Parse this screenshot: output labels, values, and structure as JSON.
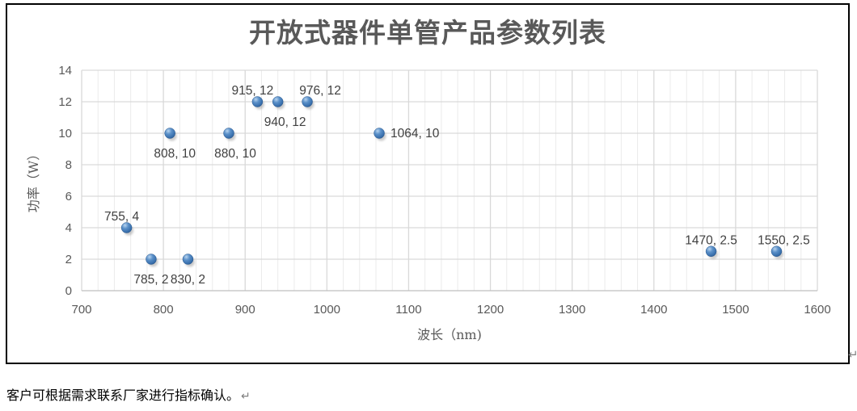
{
  "page": {
    "footer_text": "客户可根据需求联系厂家进行指标确认。",
    "return_mark": "↵"
  },
  "chart_data": {
    "type": "scatter",
    "title": "开放式器件单管产品参数列表",
    "xlabel": "波长（nm)",
    "ylabel": "功率（W）",
    "xlim": [
      700,
      1600
    ],
    "ylim": [
      0,
      14
    ],
    "x_major_step": 100,
    "x_minor_step": 20,
    "y_major_step": 2,
    "grid": true,
    "legend": "none",
    "marker_color": "#3f76b4",
    "colors": {
      "grid_major": "#d9d9d9",
      "grid_minor": "#ebebeb",
      "axis_line": "#bfbfbf",
      "tick_label": "#595959",
      "data_label": "#404040",
      "title": "#595959"
    },
    "points": [
      {
        "x": 755,
        "y": 4,
        "label": "755, 4",
        "label_position": "above",
        "dx": -6
      },
      {
        "x": 785,
        "y": 2,
        "label": "785, 2",
        "label_position": "below",
        "dx": 0
      },
      {
        "x": 808,
        "y": 10,
        "label": "808, 10",
        "label_position": "below",
        "dx": 6
      },
      {
        "x": 830,
        "y": 2,
        "label": "830, 2",
        "label_position": "below",
        "dx": 0
      },
      {
        "x": 880,
        "y": 10,
        "label": "880, 10",
        "label_position": "below",
        "dx": 8
      },
      {
        "x": 915,
        "y": 12,
        "label": "915, 12",
        "label_position": "above",
        "dx": -6
      },
      {
        "x": 940,
        "y": 12,
        "label": "940, 12",
        "label_position": "below",
        "dx": 9
      },
      {
        "x": 976,
        "y": 12,
        "label": "976, 12",
        "label_position": "above",
        "dx": 16
      },
      {
        "x": 1064,
        "y": 10,
        "label": "1064, 10",
        "label_position": "right",
        "dx": 0
      },
      {
        "x": 1470,
        "y": 2.5,
        "label": "1470, 2.5",
        "label_position": "above",
        "dx": 0
      },
      {
        "x": 1550,
        "y": 2.5,
        "label": "1550, 2.5",
        "label_position": "above",
        "dx": 9
      }
    ]
  }
}
